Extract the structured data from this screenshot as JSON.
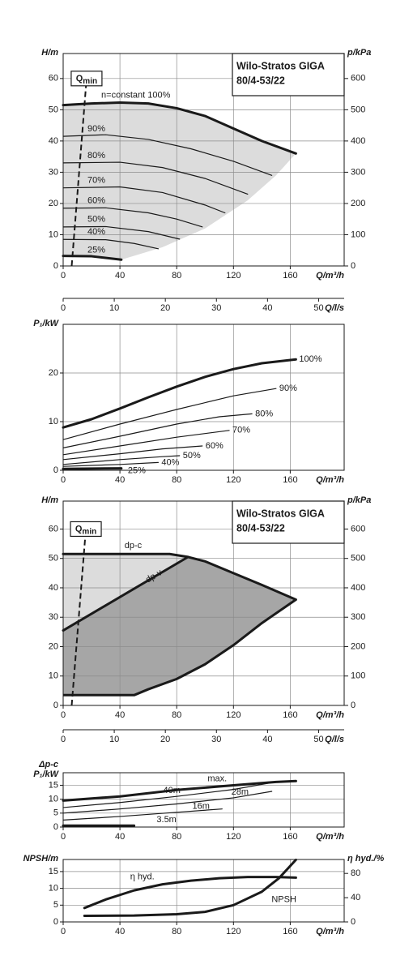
{
  "chart_data": [
    {
      "type": "line",
      "title": "Wilo-Stratos GIGA",
      "subtitle": "80/4-53/22",
      "y_label": "H/m",
      "y2_label": "p/kPa",
      "x_label": "Q/m³/h",
      "xlim": [
        0,
        198
      ],
      "xticks": [
        0,
        40,
        80,
        120,
        160
      ],
      "ylim": [
        0,
        68
      ],
      "yticks": [
        0,
        10,
        20,
        30,
        40,
        50,
        60
      ],
      "y2lim": [
        0,
        680
      ],
      "y2ticks": [
        0,
        100,
        200,
        300,
        400,
        500,
        600
      ],
      "grid": true,
      "qmin": {
        "label": "Q",
        "label_sub": "min",
        "x": [
          6,
          16.5
        ],
        "values": [
          0,
          60
        ]
      },
      "areas": [
        {
          "color": "#dcdcdc",
          "x": [
            0,
            20,
            40,
            60,
            80,
            100,
            120,
            140,
            164,
            150,
            130,
            100,
            70,
            41,
            20,
            0
          ],
          "values": [
            51.5,
            52,
            52.3,
            52,
            50.5,
            48,
            44,
            40,
            36,
            29,
            21,
            12,
            6,
            2,
            3.1,
            3.2
          ]
        }
      ],
      "series": [
        {
          "name": "n=constant 100%",
          "color": "#1a1a1a",
          "style": "thick",
          "x": [
            0,
            20,
            40,
            60,
            80,
            100,
            120,
            140,
            164
          ],
          "values": [
            51.5,
            52,
            52.3,
            52,
            50.5,
            48,
            44,
            40,
            36
          ]
        },
        {
          "name": "90%",
          "color": "#1a1a1a",
          "style": "thin",
          "x": [
            0,
            30,
            60,
            90,
            120,
            147
          ],
          "values": [
            41.5,
            42,
            40.5,
            37.5,
            33.5,
            29
          ]
        },
        {
          "name": "80%",
          "color": "#1a1a1a",
          "style": "thin",
          "x": [
            0,
            40,
            70,
            100,
            130
          ],
          "values": [
            33,
            33.2,
            31.5,
            28,
            23
          ]
        },
        {
          "name": "70%",
          "color": "#1a1a1a",
          "style": "thin",
          "x": [
            0,
            40,
            70,
            100,
            114
          ],
          "values": [
            25,
            25.3,
            23.5,
            19.5,
            17
          ]
        },
        {
          "name": "60%",
          "color": "#1a1a1a",
          "style": "thin",
          "x": [
            0,
            30,
            60,
            80,
            98
          ],
          "values": [
            18.5,
            18.6,
            17,
            15,
            12.5
          ]
        },
        {
          "name": "50%",
          "color": "#1a1a1a",
          "style": "thin",
          "x": [
            0,
            30,
            60,
            82
          ],
          "values": [
            12.5,
            12.6,
            11,
            8.6
          ]
        },
        {
          "name": "40%",
          "color": "#1a1a1a",
          "style": "thin",
          "x": [
            0,
            30,
            50,
            67
          ],
          "values": [
            8.5,
            8.4,
            7.2,
            5.5
          ]
        },
        {
          "name": "25%",
          "color": "#1a1a1a",
          "style": "thick",
          "x": [
            0,
            20,
            41
          ],
          "values": [
            3.2,
            3.1,
            2
          ]
        }
      ]
    },
    {
      "type": "axis",
      "x_label": "Q/l/s",
      "xlim": [
        0,
        55
      ],
      "xticks": [
        0,
        10,
        20,
        30,
        40,
        50
      ]
    },
    {
      "type": "line",
      "y_label": "P₁/kW",
      "x_label": "Q/m³/h",
      "xlim": [
        0,
        198
      ],
      "xticks": [
        0,
        40,
        80,
        120,
        160
      ],
      "ylim": [
        0,
        30
      ],
      "yticks": [
        0,
        10,
        20
      ],
      "grid": true,
      "series": [
        {
          "name": "100%",
          "color": "#1a1a1a",
          "style": "thick",
          "x": [
            0,
            20,
            40,
            60,
            80,
            100,
            120,
            140,
            164
          ],
          "values": [
            8.8,
            10.5,
            12.7,
            15,
            17.2,
            19.2,
            20.8,
            22,
            22.8
          ]
        },
        {
          "name": "90%",
          "color": "#1a1a1a",
          "style": "thin",
          "x": [
            0,
            40,
            80,
            120,
            150
          ],
          "values": [
            6.3,
            9.5,
            12.5,
            15.3,
            16.8
          ]
        },
        {
          "name": "80%",
          "color": "#1a1a1a",
          "style": "thin",
          "x": [
            0,
            40,
            80,
            110,
            133
          ],
          "values": [
            4.6,
            7,
            9.5,
            11,
            11.6
          ]
        },
        {
          "name": "70%",
          "color": "#1a1a1a",
          "style": "thin",
          "x": [
            0,
            40,
            80,
            117
          ],
          "values": [
            3.2,
            5,
            6.8,
            8.2
          ]
        },
        {
          "name": "60%",
          "color": "#1a1a1a",
          "style": "thin",
          "x": [
            0,
            40,
            70,
            98
          ],
          "values": [
            2.2,
            3.4,
            4.4,
            5
          ]
        },
        {
          "name": "50%",
          "color": "#1a1a1a",
          "style": "thin",
          "x": [
            0,
            40,
            70,
            82
          ],
          "values": [
            1.2,
            2.2,
            2.8,
            3
          ]
        },
        {
          "name": "40%",
          "color": "#1a1a1a",
          "style": "thin",
          "x": [
            0,
            40,
            67
          ],
          "values": [
            0.8,
            1.2,
            1.6
          ]
        },
        {
          "name": "25%",
          "color": "#1a1a1a",
          "style": "thick",
          "x": [
            0,
            41
          ],
          "values": [
            0.3,
            0.4
          ]
        }
      ]
    },
    {
      "type": "line",
      "title": "Wilo-Stratos GIGA",
      "subtitle": "80/4-53/22",
      "y_label": "H/m",
      "y2_label": "p/kPa",
      "x_label": "Q/m³/h",
      "xlim": [
        0,
        198
      ],
      "xticks": [
        0,
        40,
        80,
        120,
        160
      ],
      "ylim": [
        0,
        69.5
      ],
      "yticks": [
        0,
        10,
        20,
        30,
        40,
        50,
        60
      ],
      "y2lim": [
        0,
        695
      ],
      "y2ticks": [
        0,
        100,
        200,
        300,
        400,
        500,
        600
      ],
      "grid": true,
      "qmin": {
        "label": "Q",
        "label_sub": "min",
        "x": [
          6,
          16
        ],
        "values": [
          0,
          60
        ]
      },
      "areas": [
        {
          "color": "#dcdcdc",
          "x": [
            0,
            75,
            88,
            0
          ],
          "values": [
            51.5,
            51.5,
            50.5,
            25.5
          ]
        },
        {
          "color": "#a6a6a6",
          "x": [
            0,
            88,
            100,
            120,
            140,
            164,
            140,
            120,
            100,
            80,
            60,
            50,
            0
          ],
          "values": [
            25.5,
            50.5,
            49,
            45,
            41,
            36,
            28,
            20.5,
            14,
            9,
            5.5,
            3.5,
            3.5
          ]
        }
      ],
      "boundary": {
        "x": [
          164,
          140,
          120,
          100,
          80,
          60,
          50,
          0
        ],
        "values": [
          36,
          28,
          20.5,
          14,
          9,
          5.5,
          3.5,
          3.5
        ]
      },
      "series": [
        {
          "name": "dp-c",
          "color": "#1a1a1a",
          "style": "thick",
          "x": [
            0,
            75,
            88,
            100,
            120,
            140,
            164
          ],
          "values": [
            51.5,
            51.5,
            50.5,
            49,
            45,
            41,
            36
          ]
        },
        {
          "name": "dp-v",
          "color": "#1a1a1a",
          "style": "thick",
          "x": [
            0,
            88
          ],
          "values": [
            25.5,
            50.5
          ]
        }
      ]
    },
    {
      "type": "axis",
      "x_label": "Q/l/s",
      "xlim": [
        0,
        55
      ],
      "xticks": [
        0,
        10,
        20,
        30,
        40,
        50
      ]
    },
    {
      "type": "line",
      "y_label": "Δp-c",
      "y_label_2": "P₁/kW",
      "x_label": "Q/m³/h",
      "xlim": [
        0,
        198
      ],
      "xticks": [
        0,
        40,
        80,
        120,
        160
      ],
      "ylim": [
        0,
        19.5
      ],
      "yticks": [
        0,
        5,
        10,
        15
      ],
      "grid": true,
      "series": [
        {
          "name": "max.",
          "color": "#1a1a1a",
          "style": "thick",
          "x": [
            0,
            40,
            80,
            120,
            150,
            164
          ],
          "values": [
            9.5,
            11,
            13.3,
            15,
            16.2,
            16.5
          ]
        },
        {
          "name": "40m",
          "color": "#1a1a1a",
          "style": "thin",
          "x": [
            0,
            40,
            80,
            120,
            150
          ],
          "values": [
            7,
            8.8,
            11,
            13.5,
            16.2
          ]
        },
        {
          "name": "28m",
          "color": "#1a1a1a",
          "style": "thin",
          "x": [
            0,
            40,
            80,
            120,
            147
          ],
          "values": [
            5,
            6.5,
            8.3,
            10.5,
            12.8
          ]
        },
        {
          "name": "16m",
          "color": "#1a1a1a",
          "style": "thin",
          "x": [
            0,
            40,
            80,
            112
          ],
          "values": [
            2.5,
            3.8,
            5.3,
            6.5
          ]
        },
        {
          "name": "3.5m",
          "color": "#1a1a1a",
          "style": "thick",
          "x": [
            0,
            50
          ],
          "values": [
            0.5,
            0.5
          ]
        }
      ]
    },
    {
      "type": "line",
      "y_label": "NPSH/m",
      "y2_label": "η hyd./%",
      "x_label": "Q/m³/h",
      "xlim": [
        0,
        198
      ],
      "xticks": [
        0,
        40,
        80,
        120,
        160
      ],
      "ylim": [
        0,
        18.6
      ],
      "yticks": [
        0,
        5,
        10,
        15
      ],
      "y2lim": [
        0,
        103
      ],
      "y2ticks": [
        0,
        40,
        80
      ],
      "grid": true,
      "series": [
        {
          "name": "η hyd.",
          "color": "#1a1a1a",
          "style": "thick",
          "axis": "y2",
          "x": [
            15,
            30,
            50,
            70,
            90,
            110,
            130,
            150,
            164
          ],
          "values": [
            23,
            37,
            52,
            62,
            68,
            72,
            74,
            74,
            73
          ]
        },
        {
          "name": "NPSH",
          "color": "#1a1a1a",
          "style": "thick",
          "x": [
            15,
            50,
            80,
            100,
            120,
            140,
            152,
            164
          ],
          "values": [
            1.8,
            1.9,
            2.3,
            3,
            5,
            9,
            13,
            18.5
          ]
        }
      ]
    }
  ]
}
